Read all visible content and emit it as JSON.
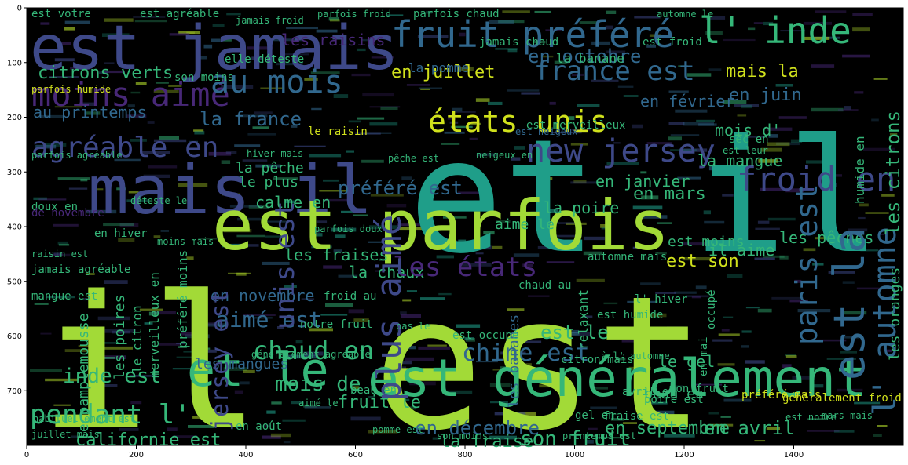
{
  "figure": {
    "type": "wordcloud",
    "background": "#000000",
    "axis": {
      "x_ticks": [
        "0",
        "200",
        "400",
        "600",
        "800",
        "1000",
        "1200",
        "1400"
      ],
      "y_ticks": [
        "0",
        "100",
        "200",
        "300",
        "400",
        "500",
        "600",
        "700"
      ],
      "x_range": [
        0,
        1600
      ],
      "y_range": [
        800,
        0
      ]
    },
    "palette": {
      "yellow_green": "#b5de2b",
      "green": "#35b779",
      "teal": "#1f9e89",
      "blue": "#31688e",
      "indigo": "#3e4989",
      "purple": "#482878",
      "lime": "#d0e11c"
    },
    "words": [
      {
        "text": "il est",
        "color": "#a2da37",
        "rot": 0
      },
      {
        "text": "et il",
        "color": "#1f9e89",
        "rot": 0
      },
      {
        "text": "est jamais",
        "color": "#3e4989",
        "rot": 0
      },
      {
        "text": "mais il",
        "color": "#3e4989",
        "rot": 0
      },
      {
        "text": "est parfois",
        "color": "#a2da37",
        "rot": 0
      },
      {
        "text": "et le",
        "color": "#35b779",
        "rot": 0
      },
      {
        "text": "est généralement",
        "color": "#35b779",
        "rot": 0
      },
      {
        "text": "fruit préféré",
        "color": "#31688e",
        "rot": 0
      },
      {
        "text": "l' inde",
        "color": "#35b779",
        "rot": 0
      },
      {
        "text": "moins aimé",
        "color": "#482878",
        "rot": 0
      },
      {
        "text": "au mois",
        "color": "#31688e",
        "rot": 0
      },
      {
        "text": "états unis",
        "color": "#d0e11c",
        "rot": 0
      },
      {
        "text": "france est",
        "color": "#31688e",
        "rot": 0
      },
      {
        "text": "froid en",
        "color": "#3e4989",
        "rot": 0
      },
      {
        "text": "agréable en",
        "color": "#3e4989",
        "rot": 0
      },
      {
        "text": "new jersey",
        "color": "#3e4989",
        "rot": 0
      },
      {
        "text": "en octobre",
        "color": "#31688e",
        "rot": 0
      },
      {
        "text": "en juillet",
        "color": "#d0e11c",
        "rot": 0
      },
      {
        "text": "mais la",
        "color": "#d0e11c",
        "rot": 0
      },
      {
        "text": "en juin",
        "color": "#31688e",
        "rot": 0
      },
      {
        "text": "en février",
        "color": "#31688e",
        "rot": 0
      },
      {
        "text": "la france",
        "color": "#31688e",
        "rot": 0
      },
      {
        "text": "au printemps",
        "color": "#31688e",
        "rot": 0
      },
      {
        "text": "mois d'",
        "color": "#35b779",
        "rot": 0
      },
      {
        "text": "la mangue",
        "color": "#35b779",
        "rot": 0
      },
      {
        "text": "en janvier",
        "color": "#35b779",
        "rot": 0
      },
      {
        "text": "la pêche",
        "color": "#35b779",
        "rot": 0
      },
      {
        "text": "aime le",
        "color": "#35b779",
        "rot": 0
      },
      {
        "text": "le plus",
        "color": "#35b779",
        "rot": 0
      },
      {
        "text": "préféré est",
        "color": "#31688e",
        "rot": 0
      },
      {
        "text": "la poire",
        "color": "#35b779",
        "rot": 0
      },
      {
        "text": "en mars",
        "color": "#35b779",
        "rot": 0
      },
      {
        "text": "calme en",
        "color": "#35b779",
        "rot": 0
      },
      {
        "text": "les raisins",
        "color": "#482878",
        "rot": 0
      },
      {
        "text": "citrons verts",
        "color": "#35b779",
        "rot": 0
      },
      {
        "text": "la pomme",
        "color": "#31688e",
        "rot": 0
      },
      {
        "text": "la banane",
        "color": "#35b779",
        "rot": 0
      },
      {
        "text": "les fraises",
        "color": "#35b779",
        "rot": 0
      },
      {
        "text": "la chaux",
        "color": "#35b779",
        "rot": 0
      },
      {
        "text": "les états",
        "color": "#482878",
        "rot": 0
      },
      {
        "text": "en novembre",
        "color": "#31688e",
        "rot": 0
      },
      {
        "text": "aimé est",
        "color": "#31688e",
        "rot": 0
      },
      {
        "text": "chaud en",
        "color": "#35b779",
        "rot": 0
      },
      {
        "text": "chine est",
        "color": "#31688e",
        "rot": 0
      },
      {
        "text": "les mangues",
        "color": "#31688e",
        "rot": 0
      },
      {
        "text": "mois de",
        "color": "#35b779",
        "rot": 0
      },
      {
        "text": "fruit le",
        "color": "#35b779",
        "rot": 0
      },
      {
        "text": "inde est",
        "color": "#35b779",
        "rot": 0
      },
      {
        "text": "pendant l'",
        "color": "#35b779",
        "rot": 0
      },
      {
        "text": "californie est",
        "color": "#35b779",
        "rot": 0
      },
      {
        "text": "en décembre",
        "color": "#31688e",
        "rot": 0
      },
      {
        "text": "la fraise",
        "color": "#35b779",
        "rot": 0
      },
      {
        "text": "son fruit",
        "color": "#35b779",
        "rot": 0
      },
      {
        "text": "en septembre",
        "color": "#35b779",
        "rot": 0
      },
      {
        "text": "en avril",
        "color": "#35b779",
        "rot": 0
      },
      {
        "text": "beau en",
        "color": "#35b779",
        "rot": 0
      },
      {
        "text": "le gel",
        "color": "#35b779",
        "rot": 0
      },
      {
        "text": "est le",
        "color": "#35b779",
        "rot": 0
      },
      {
        "text": "est son",
        "color": "#d0e11c",
        "rot": 0
      },
      {
        "text": "est moins",
        "color": "#35b779",
        "rot": 0
      },
      {
        "text": "il aime",
        "color": "#35b779",
        "rot": 0
      },
      {
        "text": "les pêches",
        "color": "#35b779",
        "rot": 0
      },
      {
        "text": "paris est",
        "color": "#31688e",
        "rot": 90
      },
      {
        "text": "est la",
        "color": "#31688e",
        "rot": 90
      },
      {
        "text": "l' automne",
        "color": "#31688e",
        "rot": 90
      },
      {
        "text": "plus aimé",
        "color": "#3e4989",
        "rot": 90
      },
      {
        "text": "jersey est",
        "color": "#3e4989",
        "rot": 90
      },
      {
        "text": "unis est",
        "color": "#3e4989",
        "rot": 90
      },
      {
        "text": "les citrons",
        "color": "#35b779",
        "rot": 90
      },
      {
        "text": "les oranges",
        "color": "#35b779",
        "rot": 90
      },
      {
        "text": "humide en",
        "color": "#35b779",
        "rot": 90
      },
      {
        "text": "le pamplemousse",
        "color": "#35b779",
        "rot": 90
      },
      {
        "text": "les poires",
        "color": "#35b779",
        "rot": 90
      },
      {
        "text": "le citron",
        "color": "#35b779",
        "rot": 90
      },
      {
        "text": "merveilleux en",
        "color": "#35b779",
        "rot": 90
      },
      {
        "text": "préféré moins",
        "color": "#35b779",
        "rot": 90
      },
      {
        "text": "relaxant",
        "color": "#35b779",
        "rot": 90
      },
      {
        "text": "les bananes",
        "color": "#31688e",
        "rot": 90
      },
      {
        "text": "occupé",
        "color": "#35b779",
        "rot": 90
      },
      {
        "text": "en mai",
        "color": "#35b779",
        "rot": 90
      },
      {
        "text": "est votre",
        "color": "#35b779",
        "rot": 0
      },
      {
        "text": "jamais froid",
        "color": "#35b779",
        "rot": 0
      },
      {
        "text": "est agréable",
        "color": "#35b779",
        "rot": 0
      },
      {
        "text": "parfois froid",
        "color": "#35b779",
        "rot": 0
      },
      {
        "text": "parfois chaud",
        "color": "#35b779",
        "rot": 0
      },
      {
        "text": "automne le",
        "color": "#35b779",
        "rot": 0
      },
      {
        "text": "est froid",
        "color": "#35b779",
        "rot": 0
      },
      {
        "text": "parfois humide",
        "color": "#d0e11c",
        "rot": 0
      },
      {
        "text": "son moins",
        "color": "#35b779",
        "rot": 0
      },
      {
        "text": "parfois agréable",
        "color": "#35b779",
        "rot": 0
      },
      {
        "text": "le raisin",
        "color": "#d0e11c",
        "rot": 0
      },
      {
        "text": "est merveilleux",
        "color": "#35b779",
        "rot": 0
      },
      {
        "text": "est neigeux",
        "color": "#31688e",
        "rot": 0
      },
      {
        "text": "hiver mais",
        "color": "#35b779",
        "rot": 0
      },
      {
        "text": "pêche est",
        "color": "#35b779",
        "rot": 0
      },
      {
        "text": "déteste le",
        "color": "#35b779",
        "rot": 0
      },
      {
        "text": "doux en",
        "color": "#35b779",
        "rot": 0
      },
      {
        "text": "de novembre",
        "color": "#482878",
        "rot": 0
      },
      {
        "text": "en hiver",
        "color": "#35b779",
        "rot": 0
      },
      {
        "text": "raisin est",
        "color": "#35b779",
        "rot": 0
      },
      {
        "text": "jamais agréable",
        "color": "#35b779",
        "rot": 0
      },
      {
        "text": "mangue est",
        "color": "#35b779",
        "rot": 0
      },
      {
        "text": "notre fruit",
        "color": "#35b779",
        "rot": 0
      },
      {
        "text": "froid au",
        "color": "#35b779",
        "rot": 0
      },
      {
        "text": "chaud au",
        "color": "#35b779",
        "rot": 0
      },
      {
        "text": "l' hiver",
        "color": "#35b779",
        "rot": 0
      },
      {
        "text": "est occupé",
        "color": "#35b779",
        "rot": 0
      },
      {
        "text": "pas le",
        "color": "#35b779",
        "rot": 0
      },
      {
        "text": "automne mais",
        "color": "#35b779",
        "rot": 0
      },
      {
        "text": "moins mais",
        "color": "#35b779",
        "rot": 0
      },
      {
        "text": "parfois doux",
        "color": "#35b779",
        "rot": 0
      },
      {
        "text": "généralement agréable",
        "color": "#35b779",
        "rot": 0
      },
      {
        "text": "en août",
        "color": "#35b779",
        "rot": 0
      },
      {
        "text": "est humide",
        "color": "#35b779",
        "rot": 0
      },
      {
        "text": "mon fruit",
        "color": "#35b779",
        "rot": 0
      },
      {
        "text": "préféré mais",
        "color": "#d0e11c",
        "rot": 0
      },
      {
        "text": "généralement froid",
        "color": "#d0e11c",
        "rot": 0
      },
      {
        "text": "gel en",
        "color": "#35b779",
        "rot": 0
      },
      {
        "text": "fraise est",
        "color": "#35b779",
        "rot": 0
      },
      {
        "text": "est notre",
        "color": "#35b779",
        "rot": 0
      },
      {
        "text": "habituellement est",
        "color": "#35b779",
        "rot": 0
      },
      {
        "text": "juillet mais",
        "color": "#35b779",
        "rot": 0
      },
      {
        "text": "pomme est",
        "color": "#35b779",
        "rot": 0
      },
      {
        "text": "son moins",
        "color": "#35b779",
        "rot": 0
      },
      {
        "text": "printemps est",
        "color": "#35b779",
        "rot": 0
      },
      {
        "text": "mars mais",
        "color": "#35b779",
        "rot": 0
      },
      {
        "text": "avril et",
        "color": "#35b779",
        "rot": 0
      },
      {
        "text": "poire est",
        "color": "#35b779",
        "rot": 0
      },
      {
        "text": "beau en",
        "color": "#35b779",
        "rot": 0
      },
      {
        "text": "à l' automne",
        "color": "#35b779",
        "rot": 0
      },
      {
        "text": "citron mais",
        "color": "#35b779",
        "rot": 0
      },
      {
        "text": "elle déteste",
        "color": "#35b779",
        "rot": 0
      },
      {
        "text": "jamais chaud",
        "color": "#35b779",
        "rot": 0
      },
      {
        "text": "sec en",
        "color": "#35b779",
        "rot": 0
      },
      {
        "text": "aimé le",
        "color": "#35b779",
        "rot": 0
      },
      {
        "text": "est leur",
        "color": "#35b779",
        "rot": 0
      },
      {
        "text": "neigeux en",
        "color": "#35b779",
        "rot": 0
      },
      {
        "text": "orange est",
        "color": "#35b779",
        "rot": 0
      },
      {
        "text": "moins mais",
        "color": "#35b779",
        "rot": 0
      }
    ]
  }
}
